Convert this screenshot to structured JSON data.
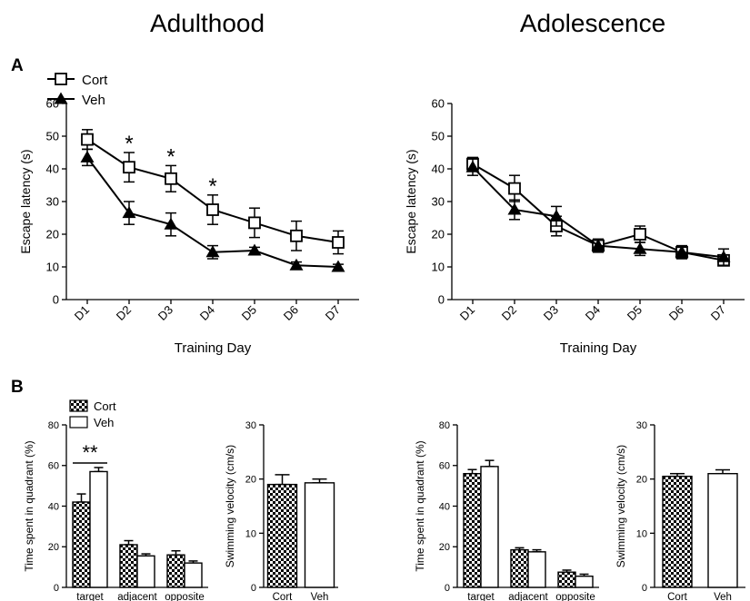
{
  "headings": {
    "left": "Adulthood",
    "right": "Adolescence",
    "panel_a": "A",
    "panel_b": "B"
  },
  "chart_data": [
    {
      "type": "line",
      "group": "Adulthood",
      "categories": [
        "D1",
        "D2",
        "D3",
        "D4",
        "D5",
        "D6",
        "D7"
      ],
      "xlabel": "Training Day",
      "ylabel": "Escape latency (s)",
      "ylim": [
        0,
        60
      ],
      "yticks": [
        0,
        10,
        20,
        30,
        40,
        50,
        60
      ],
      "legend": "top-left",
      "series": [
        {
          "name": "Cort",
          "marker": "open-square",
          "values": [
            49,
            40.5,
            37,
            27.5,
            23.5,
            19.5,
            17.5
          ],
          "errors": [
            3,
            4.5,
            4,
            4.5,
            4.5,
            4.5,
            3.5
          ]
        },
        {
          "name": "Veh",
          "marker": "filled-triangle",
          "values": [
            43.5,
            26.5,
            23,
            14.5,
            15,
            10.5,
            10
          ],
          "errors": [
            2.5,
            3.5,
            3.5,
            2,
            1,
            1,
            0.8
          ]
        }
      ],
      "annotations": [
        {
          "category": "D2",
          "text": "*"
        },
        {
          "category": "D3",
          "text": "*"
        },
        {
          "category": "D4",
          "text": "*"
        }
      ]
    },
    {
      "type": "line",
      "group": "Adolescence",
      "categories": [
        "D1",
        "D2",
        "D3",
        "D4",
        "D5",
        "D6",
        "D7"
      ],
      "xlabel": "Training Day",
      "ylabel": "Escape latency (s)",
      "ylim": [
        0,
        60
      ],
      "yticks": [
        0,
        10,
        20,
        30,
        40,
        50,
        60
      ],
      "series": [
        {
          "name": "Cort",
          "marker": "open-square",
          "values": [
            41.5,
            34,
            22.5,
            16.5,
            20,
            14.5,
            12
          ],
          "errors": [
            2,
            4,
            3,
            2,
            2.5,
            2,
            1.5
          ]
        },
        {
          "name": "Veh",
          "marker": "filled-triangle",
          "values": [
            40.5,
            27.5,
            25.5,
            16.5,
            15.5,
            14.5,
            13
          ],
          "errors": [
            2.5,
            3,
            3,
            2,
            2,
            1.5,
            2.5
          ]
        }
      ]
    },
    {
      "type": "bar",
      "group": "Adulthood",
      "categories": [
        "target",
        "adjacent",
        "opposite"
      ],
      "ylabel": "Time spent in quadrant (%)",
      "ylim": [
        0,
        80
      ],
      "yticks": [
        0,
        20,
        40,
        60,
        80
      ],
      "legend": "top-left",
      "series": [
        {
          "name": "Cort",
          "pattern": "checker",
          "values": [
            42,
            21,
            16
          ],
          "errors": [
            4,
            2,
            2
          ]
        },
        {
          "name": "Veh",
          "pattern": "white",
          "values": [
            57,
            15.5,
            12
          ],
          "errors": [
            2,
            1,
            1
          ]
        }
      ],
      "annotations": [
        {
          "category": "target",
          "text": "**"
        }
      ]
    },
    {
      "type": "bar",
      "group": "Adulthood",
      "categories": [
        "Cort",
        "Veh"
      ],
      "ylabel": "Swimming velocity (cm/s)",
      "ylim": [
        0,
        30
      ],
      "yticks": [
        0,
        10,
        20,
        30
      ],
      "patterns": [
        "checker",
        "white"
      ],
      "values": [
        19,
        19.3
      ],
      "errors": [
        1.8,
        0.7
      ]
    },
    {
      "type": "bar",
      "group": "Adolescence",
      "categories": [
        "target",
        "adjacent",
        "opposite"
      ],
      "ylabel": "Time spent in quadrant (%)",
      "ylim": [
        0,
        80
      ],
      "yticks": [
        0,
        20,
        40,
        60,
        80
      ],
      "series": [
        {
          "name": "Cort",
          "pattern": "checker",
          "values": [
            56,
            18.5,
            7.5
          ],
          "errors": [
            2,
            1,
            1
          ]
        },
        {
          "name": "Veh",
          "pattern": "white",
          "values": [
            59.5,
            17.5,
            5.5
          ],
          "errors": [
            3,
            1,
            1
          ]
        }
      ]
    },
    {
      "type": "bar",
      "group": "Adolescence",
      "categories": [
        "Cort",
        "Veh"
      ],
      "ylabel": "Swimming velocity (cm/s)",
      "ylim": [
        0,
        30
      ],
      "yticks": [
        0,
        10,
        20,
        30
      ],
      "patterns": [
        "checker",
        "white"
      ],
      "values": [
        20.5,
        21
      ],
      "errors": [
        0.5,
        0.7
      ]
    }
  ]
}
